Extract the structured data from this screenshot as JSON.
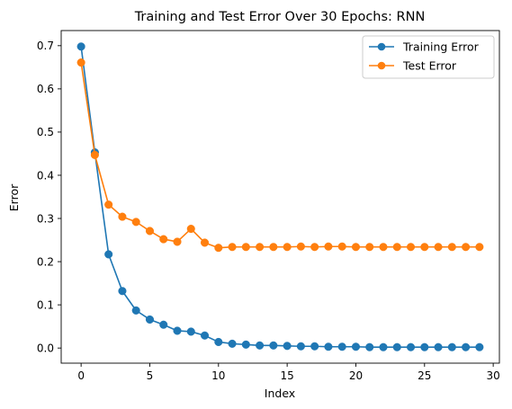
{
  "chart_data": {
    "type": "line",
    "title": "Training and Test Error Over 30 Epochs: RNN",
    "xlabel": "Index",
    "ylabel": "Error",
    "xlim": [
      -1.45,
      30.45
    ],
    "ylim": [
      -0.035,
      0.735
    ],
    "xticks": [
      0,
      5,
      10,
      15,
      20,
      25,
      30
    ],
    "xtick_labels": [
      "0",
      "5",
      "10",
      "15",
      "20",
      "25",
      "30"
    ],
    "yticks": [
      0.0,
      0.1,
      0.2,
      0.3,
      0.4,
      0.5,
      0.6,
      0.7
    ],
    "ytick_labels": [
      "0.0",
      "0.1",
      "0.2",
      "0.3",
      "0.4",
      "0.5",
      "0.6",
      "0.7"
    ],
    "grid": false,
    "legend": "upper right",
    "x": [
      0,
      1,
      2,
      3,
      4,
      5,
      6,
      7,
      8,
      9,
      10,
      11,
      12,
      13,
      14,
      15,
      16,
      17,
      18,
      19,
      20,
      21,
      22,
      23,
      24,
      25,
      26,
      27,
      28,
      29
    ],
    "series": [
      {
        "name": "Training Error",
        "color": "#1f77b4",
        "marker": "circle",
        "values": [
          0.698,
          0.453,
          0.217,
          0.132,
          0.087,
          0.066,
          0.054,
          0.04,
          0.038,
          0.029,
          0.014,
          0.01,
          0.008,
          0.006,
          0.006,
          0.005,
          0.004,
          0.004,
          0.003,
          0.003,
          0.003,
          0.002,
          0.002,
          0.002,
          0.002,
          0.002,
          0.002,
          0.002,
          0.002,
          0.002
        ]
      },
      {
        "name": "Test Error",
        "color": "#ff7f0e",
        "marker": "circle",
        "values": [
          0.661,
          0.447,
          0.332,
          0.304,
          0.292,
          0.271,
          0.252,
          0.246,
          0.276,
          0.244,
          0.232,
          0.234,
          0.234,
          0.234,
          0.234,
          0.234,
          0.235,
          0.234,
          0.235,
          0.235,
          0.234,
          0.234,
          0.234,
          0.234,
          0.234,
          0.234,
          0.234,
          0.234,
          0.234,
          0.234
        ]
      }
    ]
  }
}
